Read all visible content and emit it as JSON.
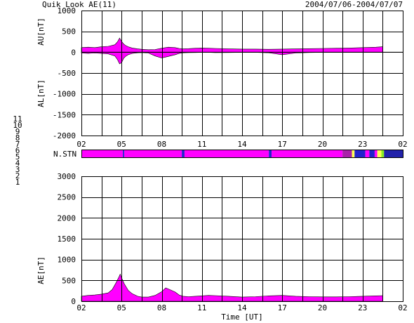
{
  "header": {
    "title": "Quik Look AE(11)",
    "date_range": "2004/07/06-2004/07/07"
  },
  "station_legend": {
    "levels": [
      {
        "label": "11",
        "color": "#22e0e0"
      },
      {
        "label": "10",
        "color": "#ff00ff"
      },
      {
        "label": "9",
        "color": "#2222cc"
      },
      {
        "label": "8",
        "color": "#ffff55"
      },
      {
        "label": "7",
        "color": "#88ee22"
      },
      {
        "label": "6",
        "color": "#ff2222"
      },
      {
        "label": "5",
        "color": "#dddddd"
      },
      {
        "label": "4",
        "color": "#aaaaaa"
      },
      {
        "label": "3",
        "color": "#22aaaa"
      },
      {
        "label": "2",
        "color": "#aa22aa"
      },
      {
        "label": "1",
        "color": "#2222aa"
      }
    ]
  },
  "nstn_label": "N.STN",
  "chart_data": [
    {
      "type": "area",
      "panel": "AU/AL",
      "ylabel_upper": "AU[nT]",
      "ylabel_lower": "AL[nT]",
      "ylim": [
        -2000,
        1000
      ],
      "yticks": [
        "1000",
        "500",
        "0",
        "-500",
        "-1000",
        "-1500",
        "-2000"
      ],
      "xticks": [
        "02",
        "05",
        "08",
        "11",
        "14",
        "17",
        "20",
        "23",
        "02"
      ],
      "xlim_hours": [
        0,
        24
      ],
      "fill_color": "#ff00ff",
      "grid": true,
      "series": [
        {
          "name": "AU",
          "x": [
            0,
            0.5,
            1,
            1.5,
            2,
            2.5,
            2.7,
            2.85,
            3,
            3.15,
            3.3,
            3.5,
            3.8,
            4.2,
            4.5,
            5,
            5.5,
            6,
            6.5,
            7,
            7.3,
            7.6,
            8,
            8.5,
            9,
            9.5,
            10,
            11,
            12,
            13,
            14,
            15,
            16,
            17,
            18,
            19,
            20,
            21,
            22,
            22.5
          ],
          "values": [
            110,
            120,
            110,
            130,
            140,
            180,
            250,
            340,
            260,
            200,
            160,
            130,
            100,
            80,
            70,
            60,
            65,
            95,
            120,
            110,
            90,
            80,
            85,
            95,
            100,
            95,
            90,
            80,
            75,
            75,
            70,
            75,
            80,
            85,
            90,
            95,
            100,
            110,
            120,
            130
          ]
        },
        {
          "name": "AL",
          "x": [
            0,
            0.5,
            1,
            1.5,
            2,
            2.5,
            2.7,
            2.85,
            3,
            3.15,
            3.3,
            3.5,
            3.8,
            4.2,
            4.5,
            5,
            5.5,
            6,
            6.5,
            7,
            7.3,
            7.6,
            8,
            8.5,
            9,
            9.5,
            10,
            11,
            12,
            13,
            14,
            15,
            16,
            17,
            18,
            19,
            20,
            21,
            22,
            22.5
          ],
          "values": [
            -20,
            -30,
            -20,
            -30,
            -40,
            -90,
            -180,
            -280,
            -250,
            -150,
            -100,
            -60,
            -30,
            -15,
            -10,
            -20,
            -90,
            -140,
            -100,
            -60,
            -30,
            -15,
            -10,
            -8,
            -5,
            -5,
            -10,
            -8,
            -5,
            -5,
            -15,
            -60,
            -20,
            -8,
            -5,
            -5,
            -5,
            -5,
            -5,
            -5
          ]
        }
      ]
    },
    {
      "type": "area",
      "panel": "AE",
      "ylabel": "AE[nT]",
      "xlabel": "Time [UT]",
      "ylim": [
        0,
        3000
      ],
      "yticks": [
        "3000",
        "2500",
        "2000",
        "1500",
        "1000",
        "500",
        "0"
      ],
      "xticks": [
        "02",
        "05",
        "08",
        "11",
        "14",
        "17",
        "20",
        "23",
        "02"
      ],
      "xlim_hours": [
        0,
        24
      ],
      "fill_color": "#ff00ff",
      "grid": true,
      "series": [
        {
          "name": "AE",
          "x": [
            0,
            0.5,
            1,
            1.5,
            2,
            2.3,
            2.6,
            2.8,
            2.9,
            3.0,
            3.2,
            3.5,
            3.8,
            4.2,
            4.5,
            5,
            5.5,
            6,
            6.3,
            6.6,
            7,
            7.3,
            7.6,
            8,
            8.5,
            9,
            9.5,
            10,
            11,
            12,
            13,
            14,
            15,
            16,
            17,
            18,
            19,
            20,
            21,
            22,
            22.5
          ],
          "values": [
            120,
            140,
            150,
            170,
            200,
            280,
            450,
            580,
            650,
            560,
            420,
            260,
            180,
            120,
            100,
            100,
            140,
            230,
            320,
            280,
            220,
            150,
            120,
            110,
            120,
            130,
            140,
            135,
            120,
            100,
            110,
            130,
            140,
            120,
            110,
            105,
            105,
            110,
            120,
            130,
            135
          ]
        }
      ]
    }
  ],
  "station_bar": {
    "type": "timeline",
    "xlim_hours": [
      0,
      24
    ],
    "segments": [
      {
        "start": 0,
        "end": 3.1,
        "level": 10
      },
      {
        "start": 3.1,
        "end": 3.2,
        "level": 9
      },
      {
        "start": 3.2,
        "end": 7.5,
        "level": 10
      },
      {
        "start": 7.5,
        "end": 7.7,
        "level": 9
      },
      {
        "start": 7.7,
        "end": 14.0,
        "level": 10
      },
      {
        "start": 14.0,
        "end": 14.2,
        "level": 9
      },
      {
        "start": 14.2,
        "end": 19.5,
        "level": 10
      },
      {
        "start": 19.5,
        "end": 20.2,
        "level": 2
      },
      {
        "start": 20.2,
        "end": 20.4,
        "level": 8
      },
      {
        "start": 20.4,
        "end": 21.2,
        "level": 9
      },
      {
        "start": 21.2,
        "end": 21.5,
        "level": 10
      },
      {
        "start": 21.5,
        "end": 21.9,
        "level": 9
      },
      {
        "start": 21.9,
        "end": 22.1,
        "level": 10
      },
      {
        "start": 22.1,
        "end": 22.4,
        "level": 8
      },
      {
        "start": 22.4,
        "end": 22.6,
        "level": 7
      },
      {
        "start": 22.6,
        "end": 24,
        "level": 1
      }
    ]
  }
}
